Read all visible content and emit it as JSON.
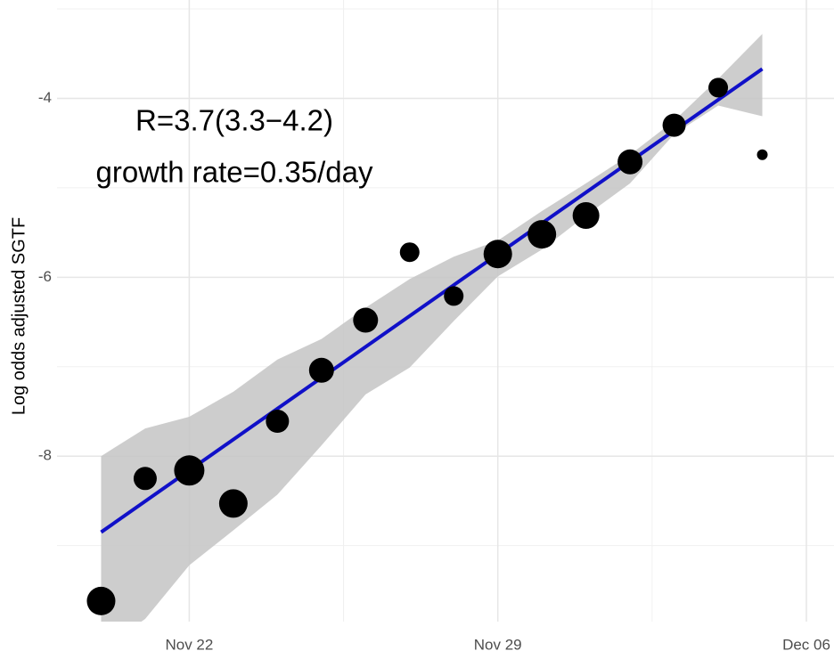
{
  "chart_data": {
    "type": "scatter",
    "ylabel": "Log odds adjusted SGTF",
    "annotations": [
      "R=3.7(3.3−4.2)",
      "growth rate=0.35/day"
    ],
    "x": [
      "Nov 20",
      "Nov 21",
      "Nov 22",
      "Nov 23",
      "Nov 24",
      "Nov 25",
      "Nov 26",
      "Nov 27",
      "Nov 28",
      "Nov 29",
      "Nov 30",
      "Dec 01",
      "Dec 02",
      "Dec 03",
      "Dec 04",
      "Dec 05"
    ],
    "values": [
      -9.62,
      -8.25,
      -8.16,
      -8.53,
      -7.61,
      -7.04,
      -6.48,
      -5.72,
      -6.21,
      -5.74,
      -5.52,
      -5.31,
      -4.71,
      -4.3,
      -3.88,
      -4.63
    ],
    "sizes": [
      16,
      13,
      17,
      16,
      13,
      14,
      14,
      11,
      11,
      16,
      16,
      15,
      14,
      13,
      11,
      6
    ],
    "color": "#000000",
    "fit": {
      "x": [
        "Nov 20",
        "Dec 05"
      ],
      "values": [
        -8.85,
        -3.67
      ],
      "color": "#1010c8"
    },
    "band": {
      "lower": [
        -10.17,
        -9.82,
        -9.22,
        -8.83,
        -8.43,
        -7.88,
        -7.31,
        -7.01,
        -6.49,
        -5.99,
        -5.69,
        -5.31,
        -4.95,
        -4.4,
        -4.08,
        -4.2
      ],
      "upper": [
        -8.0,
        -7.69,
        -7.56,
        -7.28,
        -6.92,
        -6.69,
        -6.34,
        -6.02,
        -5.77,
        -5.59,
        -5.26,
        -4.95,
        -4.63,
        -4.25,
        -3.78,
        -3.28
      ],
      "color": "#c4c4c4"
    },
    "xlim": [
      "Nov 19",
      "Dec 06"
    ],
    "xticks": [
      "Nov 22",
      "Nov 29",
      "Dec 06"
    ],
    "ylim": [
      -9.85,
      -2.9
    ],
    "yticks": [
      -8,
      -6,
      -4
    ],
    "grid": true
  }
}
